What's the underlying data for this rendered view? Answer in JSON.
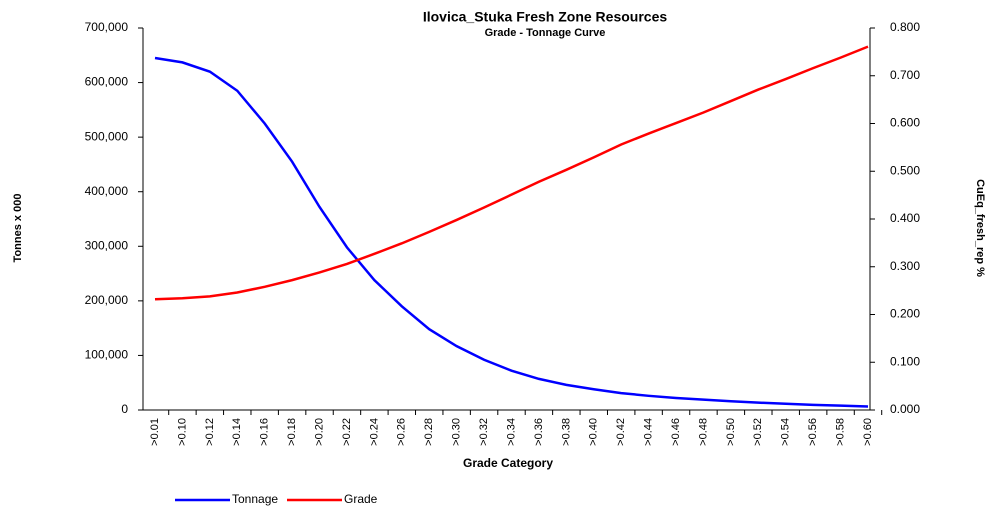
{
  "chart_data": {
    "type": "line",
    "title": "Ilovica_Stuka Fresh Zone Resources",
    "subtitle": "Grade - Tonnage Curve",
    "x_label": "Grade Category",
    "y_label": "Tonnes x 000",
    "y2_label": "CuEq_fresh_rep %",
    "categories": [
      ">0.01",
      ">0.10",
      ">0.12",
      ">0.14",
      ">0.16",
      ">0.18",
      ">0.20",
      ">0.22",
      ">0.24",
      ">0.26",
      ">0.28",
      ">0.30",
      ">0.32",
      ">0.34",
      ">0.36",
      ">0.38",
      ">0.40",
      ">0.42",
      ">0.44",
      ">0.46",
      ">0.48",
      ">0.50",
      ">0.52",
      ">0.54",
      ">0.56",
      ">0.58",
      ">0.60"
    ],
    "series": [
      {
        "name": "Tonnage",
        "color": "#0000ff",
        "values": [
          645000,
          637000,
          620000,
          585000,
          525000,
          455000,
          372000,
          298000,
          238000,
          190000,
          148000,
          117000,
          92000,
          72000,
          57000,
          46000,
          38000,
          31000,
          26000,
          22000,
          19000,
          16000,
          13500,
          11500,
          9500,
          8000,
          6500
        ]
      },
      {
        "name": "Grade",
        "color": "#ff0000",
        "axis": "y2",
        "values": [
          0.232,
          0.234,
          0.238,
          0.246,
          0.258,
          0.272,
          0.288,
          0.306,
          0.327,
          0.349,
          0.373,
          0.398,
          0.424,
          0.451,
          0.478,
          0.503,
          0.529,
          0.556,
          0.579,
          0.601,
          0.623,
          0.647,
          0.671,
          0.693,
          0.716,
          0.738,
          0.761
        ]
      }
    ],
    "ylim": [
      0,
      700000
    ],
    "yticks": [
      {
        "value": 0,
        "label": "0"
      },
      {
        "value": 100000,
        "label": "100,000"
      },
      {
        "value": 200000,
        "label": "200,000"
      },
      {
        "value": 300000,
        "label": "300,000"
      },
      {
        "value": 400000,
        "label": "400,000"
      },
      {
        "value": 500000,
        "label": "500,000"
      },
      {
        "value": 600000,
        "label": "600,000"
      },
      {
        "value": 700000,
        "label": "700,000"
      }
    ],
    "y2lim": [
      0,
      0.8
    ],
    "y2ticks": [
      {
        "value": 0,
        "label": "0.000"
      },
      {
        "value": 0.1,
        "label": "0.100"
      },
      {
        "value": 0.2,
        "label": "0.200"
      },
      {
        "value": 0.3,
        "label": "0.300"
      },
      {
        "value": 0.4,
        "label": "0.400"
      },
      {
        "value": 0.5,
        "label": "0.500"
      },
      {
        "value": 0.6,
        "label": "0.600"
      },
      {
        "value": 0.7,
        "label": "0.700"
      },
      {
        "value": 0.8,
        "label": "0.800"
      }
    ],
    "grid": false,
    "legend": "bottom"
  }
}
